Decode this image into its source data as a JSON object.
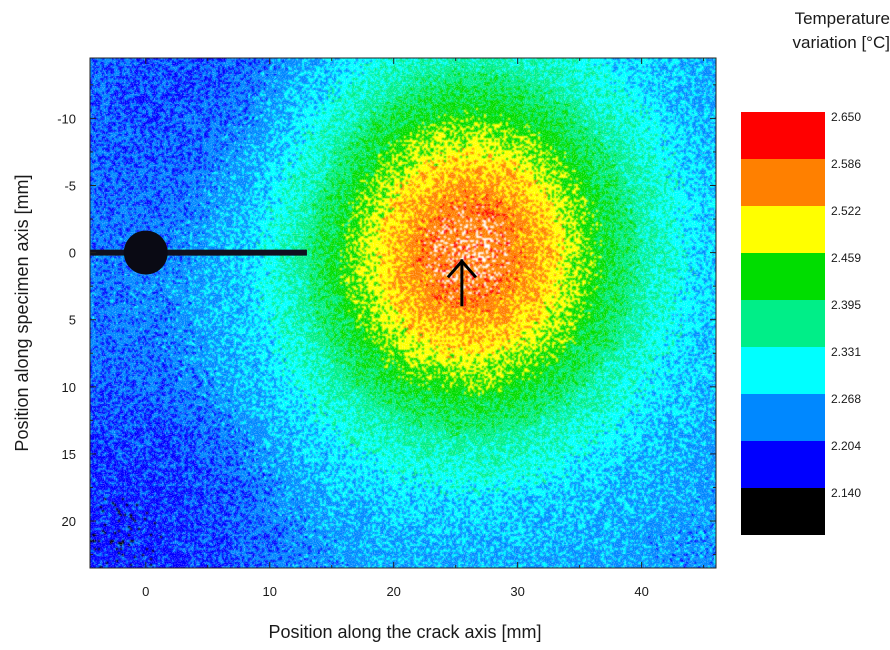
{
  "chart_data": {
    "type": "heatmap",
    "xlabel": "Position along the crack axis [mm]",
    "ylabel": "Position along specimen axis [mm]",
    "xlim": [
      -4.5,
      46
    ],
    "ylim": [
      -14.5,
      23.5
    ],
    "y_inverted": true,
    "x_ticks": [
      0,
      10,
      20,
      30,
      40
    ],
    "y_ticks": [
      -10,
      -5,
      0,
      5,
      10,
      15,
      20
    ],
    "grid": false,
    "colorbar": {
      "title_lines": [
        "Temperature",
        "variation [°C]"
      ],
      "levels": [
        "2.650",
        "2.586",
        "2.522",
        "2.459",
        "2.395",
        "2.331",
        "2.268",
        "2.204",
        "2.140"
      ],
      "colors": [
        "#ff0000",
        "#ff8000",
        "#ffff00",
        "#00dd00",
        "#00ee88",
        "#00ffff",
        "#0088ff",
        "#0000ff",
        "#000000"
      ]
    },
    "hot_spot": {
      "x": 26,
      "y": 0,
      "peak_value": 2.65
    },
    "baseline_value": 2.3,
    "hole": {
      "x": 0,
      "y": 0
    },
    "crack": {
      "x_start": -4.5,
      "x_end": 13,
      "y": 0
    },
    "arrow": {
      "x": 25.5,
      "y_tail": 4,
      "y_head": 0.5
    }
  }
}
